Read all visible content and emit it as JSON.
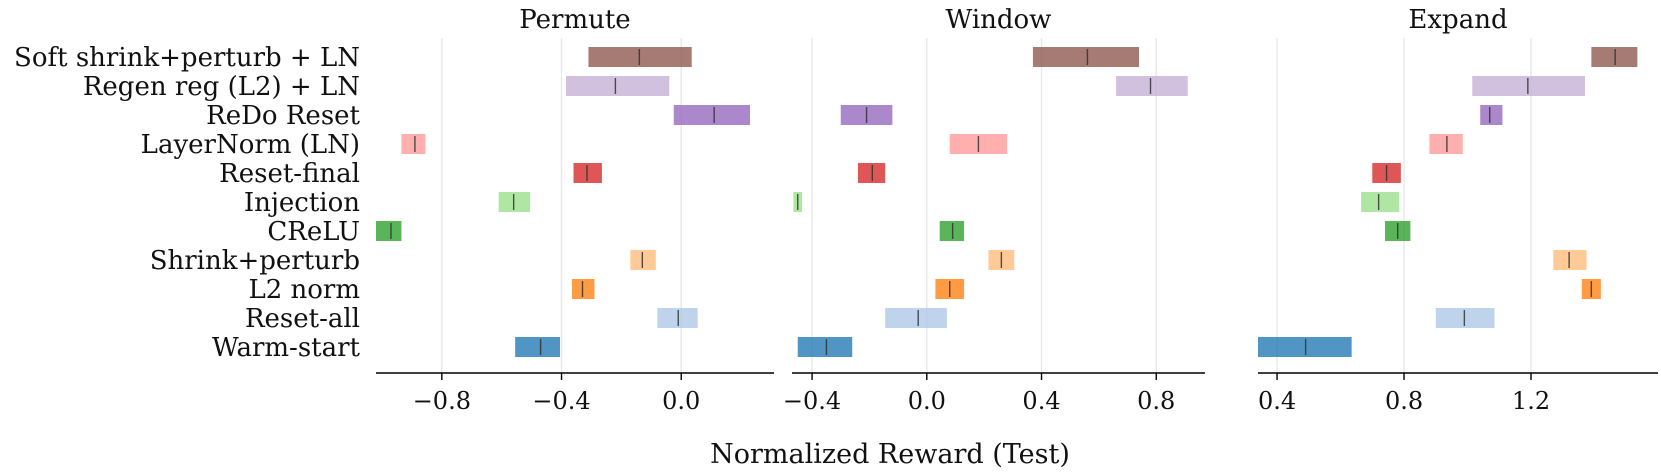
{
  "chart_data": {
    "type": "bar",
    "xlabel": "Normalized Reward (Test)",
    "methods": [
      {
        "name": "Soft shrink+perturb + LN",
        "color": "#8c564b"
      },
      {
        "name": "Regen reg (L2) + LN",
        "color": "#c5b0d5"
      },
      {
        "name": "ReDo Reset",
        "color": "#9467bd"
      },
      {
        "name": "LayerNorm (LN)",
        "color": "#ff9896"
      },
      {
        "name": "Reset-final",
        "color": "#d62728"
      },
      {
        "name": "Injection",
        "color": "#98df8a"
      },
      {
        "name": "CReLU",
        "color": "#2ca02c"
      },
      {
        "name": "Shrink+perturb",
        "color": "#ffbb78"
      },
      {
        "name": "L2 norm",
        "color": "#ff7f0e"
      },
      {
        "name": "Reset-all",
        "color": "#aec7e8"
      },
      {
        "name": "Warm-start",
        "color": "#1f77b4"
      }
    ],
    "panels": [
      {
        "title": "Permute",
        "xlim": [
          -1.02,
          0.31
        ],
        "xticks": [
          -0.8,
          -0.4,
          0.0
        ],
        "xtick_labels": [
          "−0.8",
          "−0.4",
          "0.0"
        ],
        "intervals": [
          {
            "low": -0.31,
            "high": 0.035,
            "mean": -0.14
          },
          {
            "low": -0.385,
            "high": -0.04,
            "mean": -0.22
          },
          {
            "low": -0.025,
            "high": 0.23,
            "mean": 0.11
          },
          {
            "low": -0.935,
            "high": -0.855,
            "mean": -0.89
          },
          {
            "low": -0.36,
            "high": -0.265,
            "mean": -0.315
          },
          {
            "low": -0.61,
            "high": -0.505,
            "mean": -0.56
          },
          {
            "low": -1.02,
            "high": -0.935,
            "mean": -0.97
          },
          {
            "low": -0.17,
            "high": -0.085,
            "mean": -0.13
          },
          {
            "low": -0.365,
            "high": -0.29,
            "mean": -0.33
          },
          {
            "low": -0.08,
            "high": 0.055,
            "mean": -0.01
          },
          {
            "low": -0.555,
            "high": -0.405,
            "mean": -0.47
          }
        ]
      },
      {
        "title": "Window",
        "xlim": [
          -0.47,
          0.97
        ],
        "xticks": [
          -0.4,
          0.0,
          0.4,
          0.8
        ],
        "xtick_labels": [
          "−0.4",
          "0.0",
          "0.4",
          "0.8"
        ],
        "intervals": [
          {
            "low": 0.37,
            "high": 0.74,
            "mean": 0.56
          },
          {
            "low": 0.66,
            "high": 0.91,
            "mean": 0.78
          },
          {
            "low": -0.3,
            "high": -0.12,
            "mean": -0.21
          },
          {
            "low": 0.08,
            "high": 0.28,
            "mean": 0.18
          },
          {
            "low": -0.24,
            "high": -0.145,
            "mean": -0.19
          },
          {
            "low": -0.465,
            "high": -0.435,
            "mean": -0.45
          },
          {
            "low": 0.045,
            "high": 0.13,
            "mean": 0.09
          },
          {
            "low": 0.215,
            "high": 0.305,
            "mean": 0.26
          },
          {
            "low": 0.03,
            "high": 0.13,
            "mean": 0.08
          },
          {
            "low": -0.145,
            "high": 0.07,
            "mean": -0.03
          },
          {
            "low": -0.45,
            "high": -0.26,
            "mean": -0.35
          }
        ]
      },
      {
        "title": "Expand",
        "xlim": [
          0.34,
          1.6
        ],
        "xticks": [
          0.4,
          0.8,
          1.2
        ],
        "xtick_labels": [
          "0.4",
          "0.8",
          "1.2"
        ],
        "intervals": [
          {
            "low": 1.39,
            "high": 1.535,
            "mean": 1.465
          },
          {
            "low": 1.015,
            "high": 1.37,
            "mean": 1.19
          },
          {
            "low": 1.04,
            "high": 1.11,
            "mean": 1.07
          },
          {
            "low": 0.88,
            "high": 0.985,
            "mean": 0.935
          },
          {
            "low": 0.7,
            "high": 0.79,
            "mean": 0.745
          },
          {
            "low": 0.665,
            "high": 0.785,
            "mean": 0.72
          },
          {
            "low": 0.74,
            "high": 0.82,
            "mean": 0.78
          },
          {
            "low": 1.27,
            "high": 1.375,
            "mean": 1.32
          },
          {
            "low": 1.36,
            "high": 1.42,
            "mean": 1.39
          },
          {
            "low": 0.9,
            "high": 1.085,
            "mean": 0.99
          },
          {
            "low": 0.34,
            "high": 0.635,
            "mean": 0.49
          }
        ]
      }
    ]
  }
}
